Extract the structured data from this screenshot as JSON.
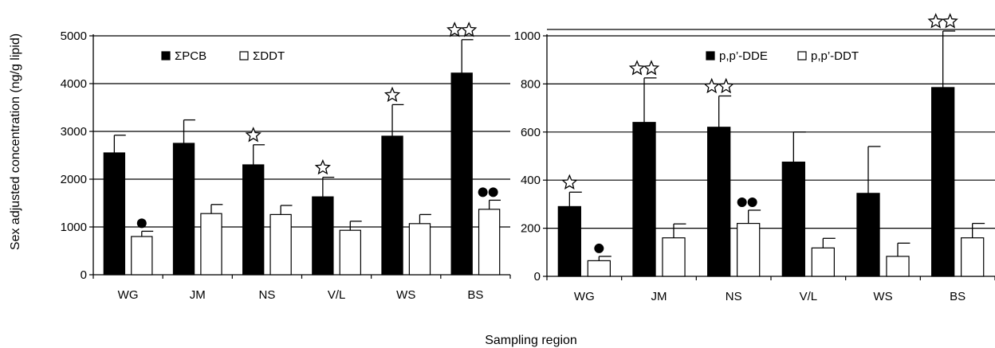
{
  "figure": {
    "ylabel": "Sex adjusted concentration (ng/g lipid)",
    "xlabel": "Sampling region"
  },
  "chart_data": [
    {
      "type": "bar",
      "panel": "left",
      "categories": [
        "WG",
        "JM",
        "NS",
        "V/L",
        "WS",
        "BS"
      ],
      "ylim": [
        0,
        5000
      ],
      "yticks": [
        0,
        1000,
        2000,
        3000,
        4000,
        5000
      ],
      "grid": true,
      "legend": "top-left",
      "series": [
        {
          "name": "ΣPCB",
          "fill": "#000000",
          "values": [
            2550,
            2750,
            2300,
            1630,
            2900,
            4220
          ],
          "errors": [
            370,
            490,
            420,
            410,
            660,
            700
          ],
          "marks": [
            "",
            "",
            "star",
            "star",
            "star",
            "star2"
          ]
        },
        {
          "name": "ΣDDT",
          "fill": "#ffffff",
          "values": [
            800,
            1280,
            1260,
            930,
            1070,
            1370
          ],
          "errors": [
            110,
            190,
            190,
            190,
            190,
            190
          ],
          "marks": [
            "dot",
            "",
            "",
            "",
            "",
            "dot2"
          ]
        }
      ]
    },
    {
      "type": "bar",
      "panel": "right",
      "categories": [
        "WG",
        "JM",
        "NS",
        "V/L",
        "WS",
        "BS"
      ],
      "ylim": [
        0,
        1000
      ],
      "yticks": [
        0,
        200,
        400,
        600,
        800,
        1000
      ],
      "grid": true,
      "legend": "top-left",
      "series": [
        {
          "name": "p,p’-DDE",
          "fill": "#000000",
          "values": [
            290,
            640,
            620,
            475,
            345,
            785
          ],
          "errors": [
            60,
            185,
            130,
            125,
            195,
            235
          ],
          "marks": [
            "star",
            "star2",
            "star2",
            "",
            "",
            "star2"
          ]
        },
        {
          "name": "p,p’-DDT",
          "fill": "#ffffff",
          "values": [
            65,
            160,
            220,
            118,
            83,
            160
          ],
          "errors": [
            18,
            58,
            55,
            40,
            55,
            60
          ],
          "marks": [
            "dot",
            "",
            "dot2",
            "",
            "",
            ""
          ]
        }
      ]
    }
  ]
}
